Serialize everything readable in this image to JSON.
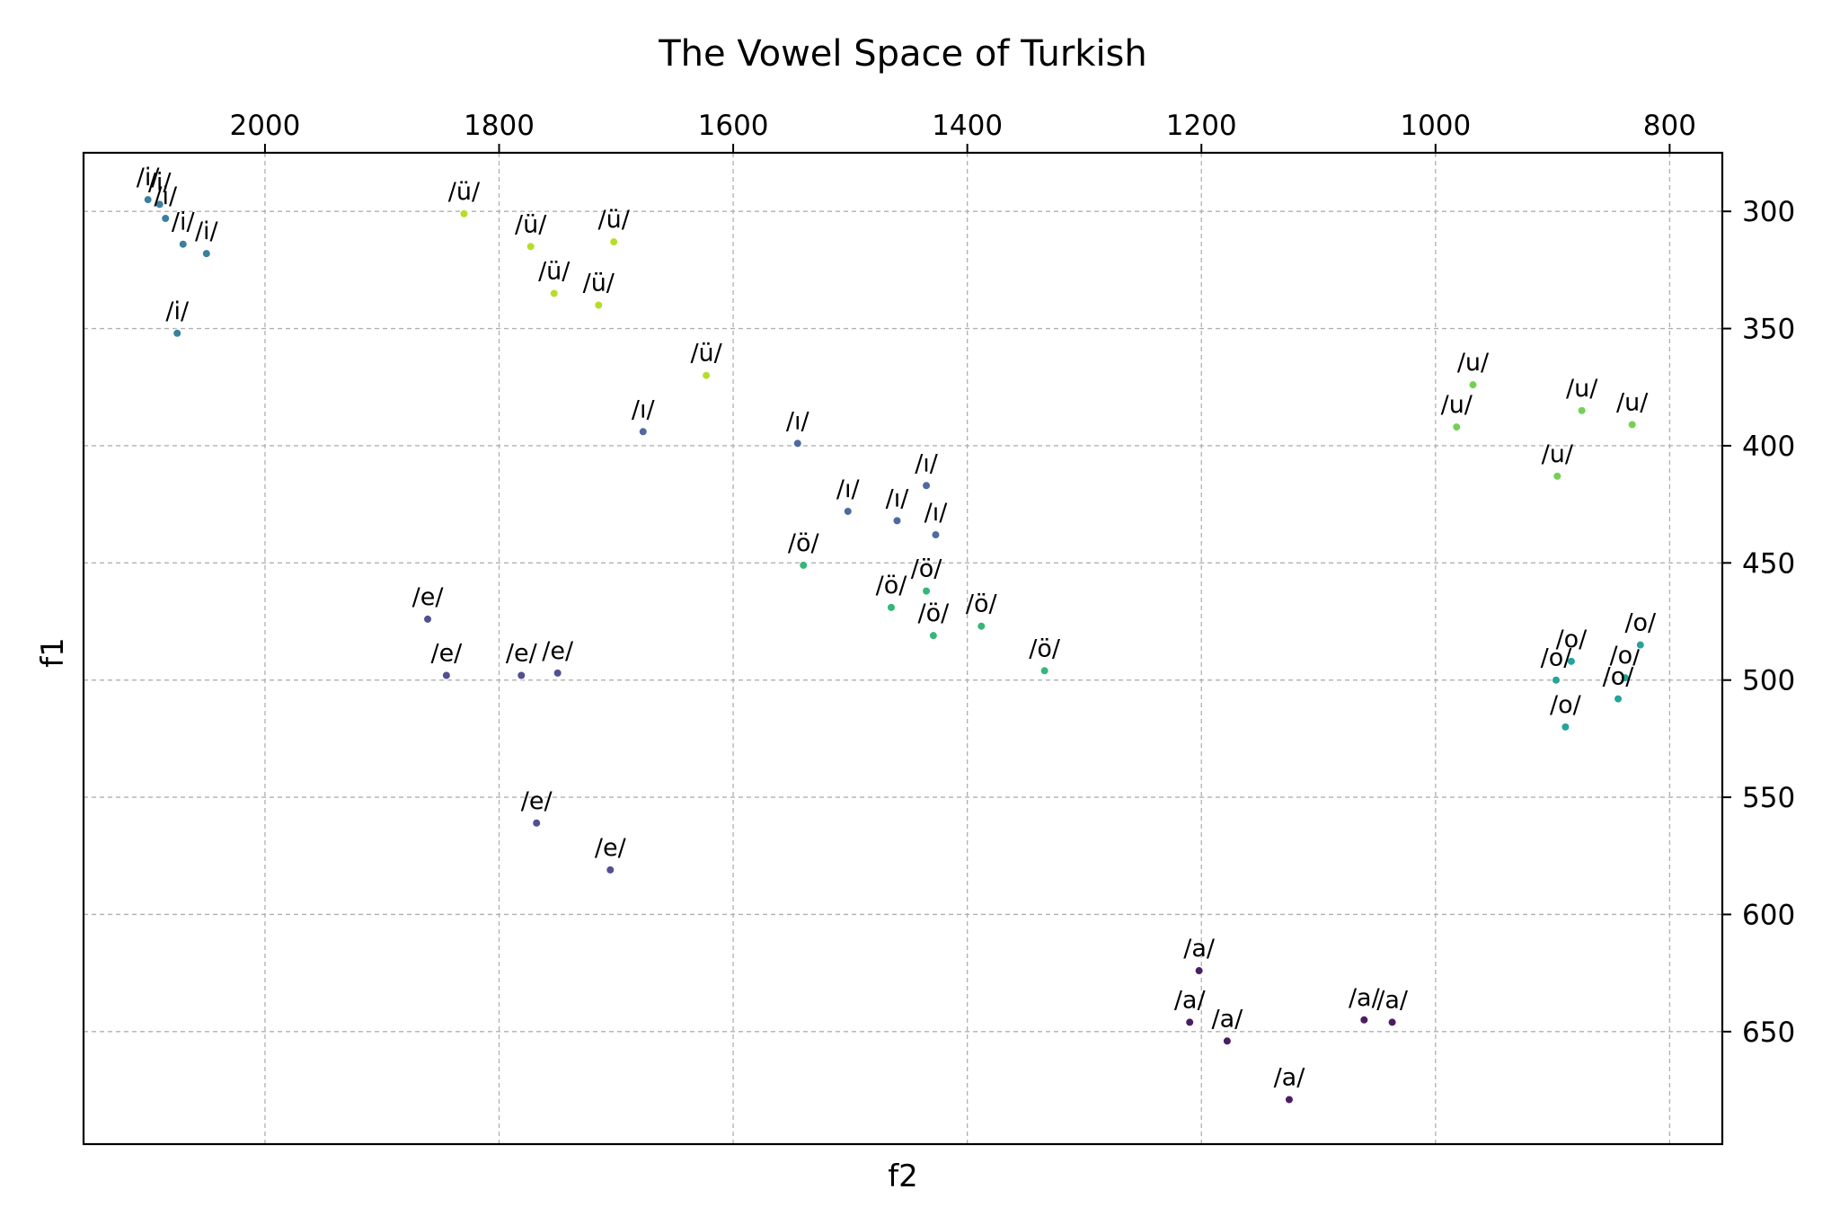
{
  "chart_data": {
    "type": "scatter",
    "title": "The Vowel Space of Turkish",
    "xlabel": "f2",
    "ylabel": "f1",
    "x_axis": {
      "inverted": true,
      "ticks_position": "top",
      "xlim": [
        2155,
        755
      ],
      "ticks": [
        2000,
        1800,
        1600,
        1400,
        1200,
        1000,
        800
      ]
    },
    "y_axis": {
      "inverted": true,
      "ticks_position": "right",
      "ylim": [
        275,
        698
      ],
      "ticks": [
        300,
        350,
        400,
        450,
        500,
        550,
        600,
        650
      ]
    },
    "grid": true,
    "colors": {
      "/i/": "#3b7fa0",
      "/ü/": "#b5de2b",
      "/ı/": "#4e6aa0",
      "/e/": "#524f92",
      "/ö/": "#35b779",
      "/u/": "#74d055",
      "/o/": "#26a39a",
      "/a/": "#4b1e63"
    },
    "points": [
      {
        "label": "/i/",
        "f2": 2100,
        "f1": 295
      },
      {
        "label": "/i/",
        "f2": 2090,
        "f1": 297
      },
      {
        "label": "/i/",
        "f2": 2085,
        "f1": 303
      },
      {
        "label": "/i/",
        "f2": 2070,
        "f1": 314
      },
      {
        "label": "/i/",
        "f2": 2050,
        "f1": 318
      },
      {
        "label": "/i/",
        "f2": 2075,
        "f1": 352
      },
      {
        "label": "/ü/",
        "f2": 1830,
        "f1": 301
      },
      {
        "label": "/ü/",
        "f2": 1773,
        "f1": 315
      },
      {
        "label": "/ü/",
        "f2": 1753,
        "f1": 335
      },
      {
        "label": "/ü/",
        "f2": 1702,
        "f1": 313
      },
      {
        "label": "/ü/",
        "f2": 1715,
        "f1": 340
      },
      {
        "label": "/ü/",
        "f2": 1623,
        "f1": 370
      },
      {
        "label": "/ı/",
        "f2": 1677,
        "f1": 394
      },
      {
        "label": "/ı/",
        "f2": 1545,
        "f1": 399
      },
      {
        "label": "/ı/",
        "f2": 1502,
        "f1": 428
      },
      {
        "label": "/ı/",
        "f2": 1460,
        "f1": 432
      },
      {
        "label": "/ı/",
        "f2": 1435,
        "f1": 417
      },
      {
        "label": "/ı/",
        "f2": 1427,
        "f1": 438
      },
      {
        "label": "/ö/",
        "f2": 1540,
        "f1": 451
      },
      {
        "label": "/ö/",
        "f2": 1465,
        "f1": 469
      },
      {
        "label": "/ö/",
        "f2": 1435,
        "f1": 462
      },
      {
        "label": "/ö/",
        "f2": 1429,
        "f1": 481
      },
      {
        "label": "/ö/",
        "f2": 1388,
        "f1": 477
      },
      {
        "label": "/ö/",
        "f2": 1334,
        "f1": 496
      },
      {
        "label": "/e/",
        "f2": 1861,
        "f1": 474
      },
      {
        "label": "/e/",
        "f2": 1845,
        "f1": 498
      },
      {
        "label": "/e/",
        "f2": 1781,
        "f1": 498
      },
      {
        "label": "/e/",
        "f2": 1750,
        "f1": 497
      },
      {
        "label": "/e/",
        "f2": 1768,
        "f1": 561
      },
      {
        "label": "/e/",
        "f2": 1705,
        "f1": 581
      },
      {
        "label": "/u/",
        "f2": 982,
        "f1": 392
      },
      {
        "label": "/u/",
        "f2": 968,
        "f1": 374
      },
      {
        "label": "/u/",
        "f2": 875,
        "f1": 385
      },
      {
        "label": "/u/",
        "f2": 832,
        "f1": 391
      },
      {
        "label": "/u/",
        "f2": 896,
        "f1": 413
      },
      {
        "label": "/o/",
        "f2": 884,
        "f1": 492
      },
      {
        "label": "/o/",
        "f2": 897,
        "f1": 500
      },
      {
        "label": "/o/",
        "f2": 838,
        "f1": 499
      },
      {
        "label": "/o/",
        "f2": 825,
        "f1": 485
      },
      {
        "label": "/o/",
        "f2": 844,
        "f1": 508
      },
      {
        "label": "/o/",
        "f2": 889,
        "f1": 520
      },
      {
        "label": "/a/",
        "f2": 1202,
        "f1": 624
      },
      {
        "label": "/a/",
        "f2": 1210,
        "f1": 646
      },
      {
        "label": "/a/",
        "f2": 1178,
        "f1": 654
      },
      {
        "label": "/a/",
        "f2": 1061,
        "f1": 645
      },
      {
        "label": "/a/",
        "f2": 1037,
        "f1": 646
      },
      {
        "label": "/a/",
        "f2": 1125,
        "f1": 679
      }
    ]
  }
}
